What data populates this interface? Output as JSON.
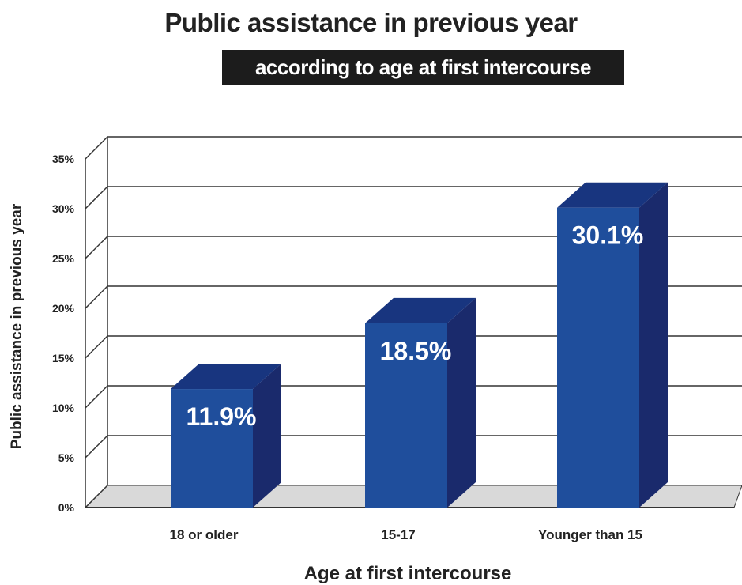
{
  "chart_data": {
    "type": "bar",
    "title": "Public assistance in previous year",
    "subtitle": "according to age at first intercourse",
    "xlabel": "Age at first intercourse",
    "ylabel": "Public assistance in previous year",
    "categories": [
      "18 or older",
      "15-17",
      "Younger than 15"
    ],
    "values": [
      11.9,
      18.5,
      30.1
    ],
    "data_labels": [
      "11.9%",
      "18.5%",
      "30.1%"
    ],
    "ylim": [
      0,
      35
    ],
    "yticks": [
      0,
      5,
      10,
      15,
      20,
      25,
      30,
      35
    ],
    "ytick_labels": [
      "0%",
      "5%",
      "10%",
      "15%",
      "20%",
      "25%",
      "30%",
      "35%"
    ],
    "grid": true,
    "style": "3d",
    "colors": {
      "bar_front": "#1f4e9c",
      "bar_side": "#1a2a6c",
      "bar_top": "#18357f",
      "floor": "#d9d9d9",
      "gridline": "#333333"
    }
  }
}
